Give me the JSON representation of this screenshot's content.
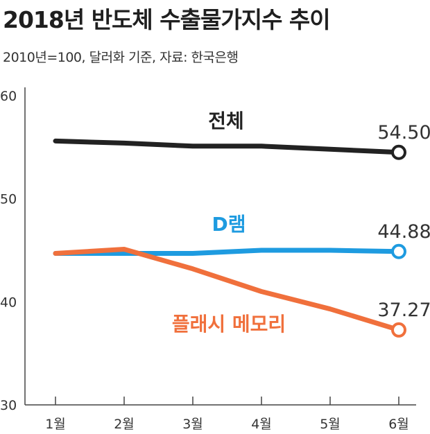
{
  "chart_data": {
    "type": "line",
    "title": "2018년 반도체 수출물가지수 추이",
    "subtitle": "2010년=100, 달러화 기준, 자료: 한국은행",
    "categories": [
      "1월",
      "2월",
      "3월",
      "4월",
      "5월",
      "6월"
    ],
    "y_ticks": [
      "60",
      "50",
      "40",
      "30"
    ],
    "ylim": [
      30,
      60
    ],
    "grid": false,
    "series": [
      {
        "name": "전체",
        "color": "#222222",
        "values": [
          55.6,
          55.4,
          55.1,
          55.1,
          54.8,
          54.5
        ],
        "end_label": "54.50"
      },
      {
        "name": "D램",
        "color": "#1e9be0",
        "values": [
          44.7,
          44.7,
          44.7,
          45.0,
          45.0,
          44.88
        ],
        "end_label": "44.88"
      },
      {
        "name": "플래시 메모리",
        "color": "#f0703c",
        "values": [
          44.7,
          45.1,
          43.2,
          41.0,
          39.3,
          37.27
        ],
        "end_label": "37.27"
      }
    ]
  }
}
